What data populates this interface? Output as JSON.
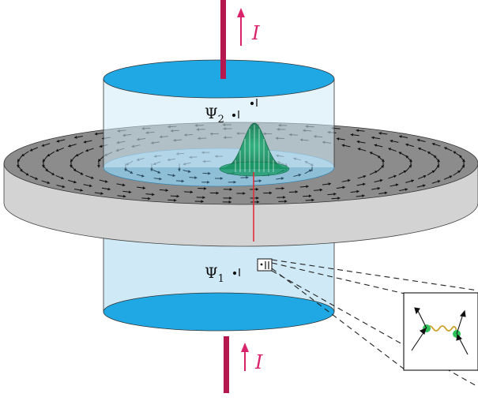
{
  "labels": {
    "current_top": "I",
    "current_bottom": "I",
    "psi_upper": "Ψ",
    "psi_upper_sub": "2",
    "psi_lower": "Ψ",
    "psi_lower_sub": "1"
  },
  "colors": {
    "wire": "#b5174f",
    "current_arrow": "#d9246b",
    "cylinder_cap": "#1fa8e4",
    "cylinder_body": "#cfe9f6",
    "disc_top": "#8c8c8c",
    "disc_side": "#d3d3d3",
    "wave_packet": "#1f9e6a",
    "interaction_particle": "#2ec35a",
    "photon_line": "#c9a227",
    "vertical_marker": "#e0303a"
  },
  "icons": {
    "upper_probe": "probe-tick-icon",
    "lower_probe": "probe-tick-icon",
    "zoom_source": "detector-box-icon",
    "zoom_content": "interaction-vertex-icon"
  }
}
